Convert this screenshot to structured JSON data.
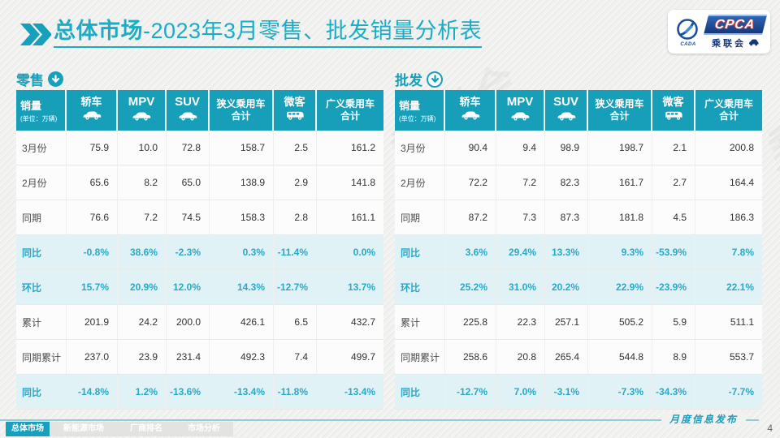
{
  "slide": {
    "title_bold": "总体市场",
    "title_rest": "-2023年3月零售、批发销量分析表",
    "release_label": "月度信息发布",
    "page_number": "4",
    "watermark": "CPCA 乘联会"
  },
  "logo": {
    "emblem_text": "CADA",
    "main_text": "CPCA",
    "sub_text": "乘联会"
  },
  "table_header": {
    "col0_title": "销量",
    "col0_unit": "(单位：万辆)",
    "columns": [
      {
        "label": "轿车",
        "icon": "sedan-icon"
      },
      {
        "label": "MPV",
        "icon": "mpv-icon",
        "latin": true
      },
      {
        "label": "SUV",
        "icon": "suv-icon",
        "latin": true
      },
      {
        "label": "狭义乘用车",
        "label2": "合计"
      },
      {
        "label": "微客",
        "icon": "minibus-icon"
      },
      {
        "label": "广义乘用车",
        "label2": "合计"
      }
    ]
  },
  "retail": {
    "section_label": "零售",
    "rows": [
      {
        "label": "3月份",
        "highlight": false,
        "values": [
          "75.9",
          "10.0",
          "72.8",
          "158.7",
          "2.5",
          "161.2"
        ]
      },
      {
        "label": "2月份",
        "highlight": false,
        "values": [
          "65.6",
          "8.2",
          "65.0",
          "138.9",
          "2.9",
          "141.8"
        ]
      },
      {
        "label": "同期",
        "highlight": false,
        "values": [
          "76.6",
          "7.2",
          "74.5",
          "158.3",
          "2.8",
          "161.1"
        ]
      },
      {
        "label": "同比",
        "highlight": true,
        "values": [
          "-0.8%",
          "38.6%",
          "-2.3%",
          "0.3%",
          "-11.4%",
          "0.0%"
        ]
      },
      {
        "label": "环比",
        "highlight": true,
        "values": [
          "15.7%",
          "20.9%",
          "12.0%",
          "14.3%",
          "-12.7%",
          "13.7%"
        ]
      },
      {
        "label": "累计",
        "highlight": false,
        "values": [
          "201.9",
          "24.2",
          "200.0",
          "426.1",
          "6.5",
          "432.7"
        ]
      },
      {
        "label": "同期累计",
        "highlight": false,
        "values": [
          "237.0",
          "23.9",
          "231.4",
          "492.3",
          "7.4",
          "499.7"
        ]
      },
      {
        "label": "同比",
        "highlight": true,
        "values": [
          "-14.8%",
          "1.2%",
          "-13.6%",
          "-13.4%",
          "-11.8%",
          "-13.4%"
        ]
      }
    ]
  },
  "wholesale": {
    "section_label": "批发",
    "rows": [
      {
        "label": "3月份",
        "highlight": false,
        "values": [
          "90.4",
          "9.4",
          "98.9",
          "198.7",
          "2.1",
          "200.8"
        ]
      },
      {
        "label": "2月份",
        "highlight": false,
        "values": [
          "72.2",
          "7.2",
          "82.3",
          "161.7",
          "2.7",
          "164.4"
        ]
      },
      {
        "label": "同期",
        "highlight": false,
        "values": [
          "87.2",
          "7.3",
          "87.3",
          "181.8",
          "4.5",
          "186.3"
        ]
      },
      {
        "label": "同比",
        "highlight": true,
        "values": [
          "3.6%",
          "29.4%",
          "13.3%",
          "9.3%",
          "-53.9%",
          "7.8%"
        ]
      },
      {
        "label": "环比",
        "highlight": true,
        "values": [
          "25.2%",
          "31.0%",
          "20.2%",
          "22.9%",
          "-23.9%",
          "22.1%"
        ]
      },
      {
        "label": "累计",
        "highlight": false,
        "values": [
          "225.8",
          "22.3",
          "257.1",
          "505.2",
          "5.9",
          "511.1"
        ]
      },
      {
        "label": "同期累计",
        "highlight": false,
        "values": [
          "258.6",
          "20.8",
          "265.4",
          "544.8",
          "8.9",
          "553.7"
        ]
      },
      {
        "label": "同比",
        "highlight": true,
        "values": [
          "-12.7%",
          "7.0%",
          "-3.1%",
          "-7.3%",
          "-34.3%",
          "-7.7%"
        ]
      }
    ]
  },
  "footer_tabs": [
    {
      "label": "总体市场",
      "active": true
    },
    {
      "label": "新能源市场",
      "active": false
    },
    {
      "label": "厂商排名",
      "active": false
    },
    {
      "label": "市场分析",
      "active": false
    }
  ],
  "colors": {
    "teal": "#179fba",
    "highlight_bg": "#e1f2f7",
    "percent_text": "#29a8c8",
    "logo_blue": "#14367c",
    "logo_red": "#d23a3a"
  },
  "icons": {
    "title_chevron": "double-right-chevron",
    "section_arrow": "circle-down-arrow",
    "sedan": "car-side",
    "mpv": "car-side",
    "suv": "car-side",
    "minibus": "van-side"
  }
}
